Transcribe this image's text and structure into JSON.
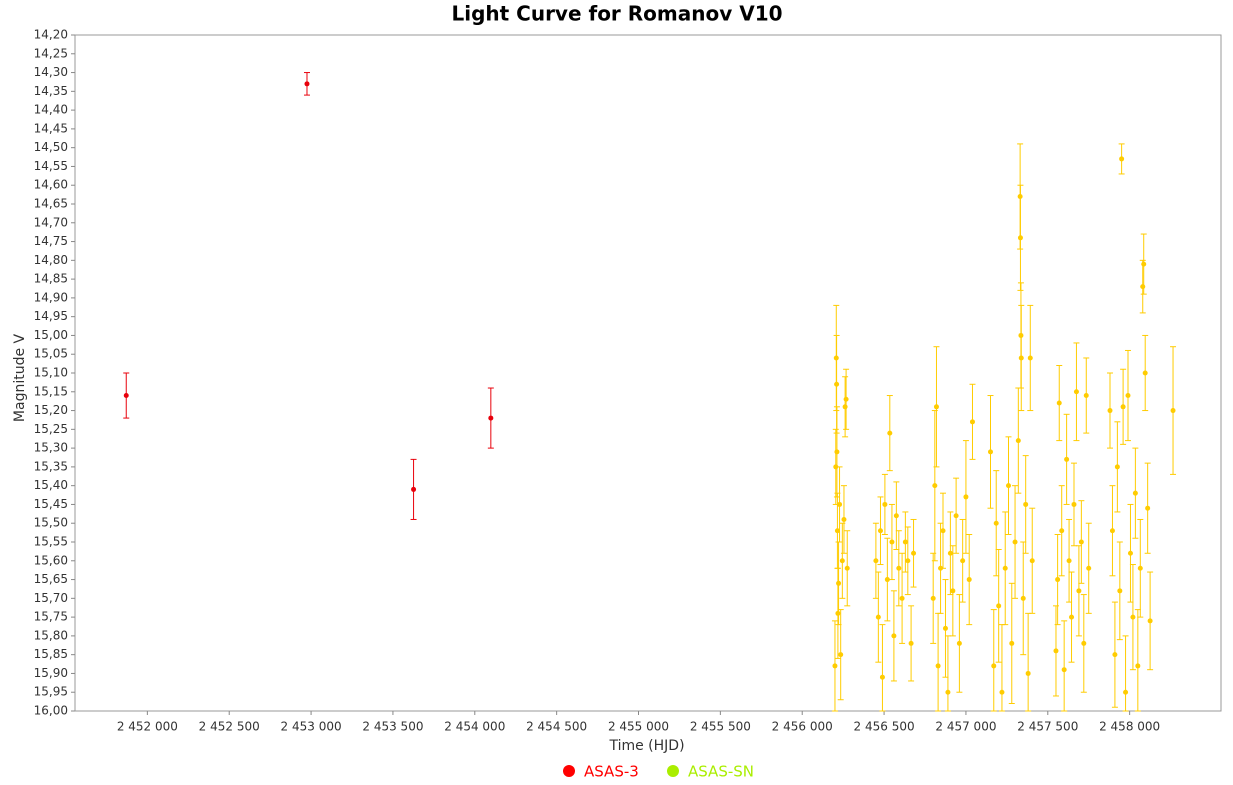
{
  "chart_data": {
    "type": "scatter",
    "title": "Light Curve for Romanov V10",
    "x_label": "Time (HJD)",
    "y_label": "Magnitude V",
    "xlim": [
      2451558,
      2458558
    ],
    "ylim": [
      16.0,
      14.2
    ],
    "xticks": [
      {
        "value": 2452000,
        "label": "2 452 000"
      },
      {
        "value": 2452500,
        "label": "2 452 500"
      },
      {
        "value": 2453000,
        "label": "2 453 000"
      },
      {
        "value": 2453500,
        "label": "2 453 500"
      },
      {
        "value": 2454000,
        "label": "2 454 000"
      },
      {
        "value": 2454500,
        "label": "2 454 500"
      },
      {
        "value": 2455000,
        "label": "2 455 000"
      },
      {
        "value": 2455500,
        "label": "2 455 500"
      },
      {
        "value": 2456000,
        "label": "2 456 000"
      },
      {
        "value": 2456500,
        "label": "2 456 500"
      },
      {
        "value": 2457000,
        "label": "2 457 000"
      },
      {
        "value": 2457500,
        "label": "2 457 500"
      },
      {
        "value": 2458000,
        "label": "2 458 000"
      }
    ],
    "yticks": [
      {
        "value": 14.2,
        "label": "14,20"
      },
      {
        "value": 14.25,
        "label": "14,25"
      },
      {
        "value": 14.3,
        "label": "14,30"
      },
      {
        "value": 14.35,
        "label": "14,35"
      },
      {
        "value": 14.4,
        "label": "14,40"
      },
      {
        "value": 14.45,
        "label": "14,45"
      },
      {
        "value": 14.5,
        "label": "14,50"
      },
      {
        "value": 14.55,
        "label": "14,55"
      },
      {
        "value": 14.6,
        "label": "14,60"
      },
      {
        "value": 14.65,
        "label": "14,65"
      },
      {
        "value": 14.7,
        "label": "14,70"
      },
      {
        "value": 14.75,
        "label": "14,75"
      },
      {
        "value": 14.8,
        "label": "14,80"
      },
      {
        "value": 14.85,
        "label": "14,85"
      },
      {
        "value": 14.9,
        "label": "14,90"
      },
      {
        "value": 14.95,
        "label": "14,95"
      },
      {
        "value": 15.0,
        "label": "15,00"
      },
      {
        "value": 15.05,
        "label": "15,05"
      },
      {
        "value": 15.1,
        "label": "15,10"
      },
      {
        "value": 15.15,
        "label": "15,15"
      },
      {
        "value": 15.2,
        "label": "15,20"
      },
      {
        "value": 15.25,
        "label": "15,25"
      },
      {
        "value": 15.3,
        "label": "15,30"
      },
      {
        "value": 15.35,
        "label": "15,35"
      },
      {
        "value": 15.4,
        "label": "15,40"
      },
      {
        "value": 15.45,
        "label": "15,45"
      },
      {
        "value": 15.5,
        "label": "15,50"
      },
      {
        "value": 15.55,
        "label": "15,55"
      },
      {
        "value": 15.6,
        "label": "15,60"
      },
      {
        "value": 15.65,
        "label": "15,65"
      },
      {
        "value": 15.7,
        "label": "15,70"
      },
      {
        "value": 15.75,
        "label": "15,75"
      },
      {
        "value": 15.8,
        "label": "15,80"
      },
      {
        "value": 15.85,
        "label": "15,85"
      },
      {
        "value": 15.9,
        "label": "15,90"
      },
      {
        "value": 15.95,
        "label": "15,95"
      },
      {
        "value": 16.0,
        "label": "16,00"
      }
    ],
    "series": [
      {
        "name": "ASAS-3",
        "color": "#e8000b",
        "legend_color": "#ff0000",
        "x": [
          2451871,
          2452975,
          2453626,
          2454098
        ],
        "values": [
          15.16,
          14.33,
          15.41,
          15.22
        ],
        "errors": [
          0.06,
          0.03,
          0.08,
          0.08
        ]
      },
      {
        "name": "ASAS-SN",
        "color": "#ffcc00",
        "legend_color": "#aaee00",
        "x": [
          2456200,
          2456205,
          2456208,
          2456210,
          2456212,
          2456215,
          2456218,
          2456222,
          2456228,
          2456235,
          2456245,
          2456255,
          2456262,
          2456268,
          2456275,
          2456450,
          2456465,
          2456478,
          2456490,
          2456505,
          2456520,
          2456535,
          2456548,
          2456560,
          2456575,
          2456590,
          2456610,
          2456630,
          2456645,
          2456665,
          2456680,
          2456800,
          2456810,
          2456820,
          2456830,
          2456845,
          2456860,
          2456875,
          2456890,
          2456905,
          2456920,
          2456940,
          2456960,
          2456980,
          2457000,
          2457020,
          2457040,
          2457150,
          2457170,
          2457185,
          2457200,
          2457220,
          2457240,
          2457260,
          2457280,
          2457300,
          2457320,
          2457331,
          2457333,
          2457336,
          2457338,
          2457350,
          2457365,
          2457380,
          2457393,
          2457405,
          2457550,
          2457560,
          2457570,
          2457585,
          2457600,
          2457615,
          2457630,
          2457645,
          2457660,
          2457675,
          2457690,
          2457705,
          2457720,
          2457735,
          2457750,
          2457880,
          2457895,
          2457910,
          2457925,
          2457940,
          2457951,
          2457960,
          2457975,
          2457990,
          2458005,
          2458020,
          2458035,
          2458050,
          2458065,
          2458080,
          2458086,
          2458095,
          2458110,
          2458125,
          2458265
        ],
        "values": [
          15.88,
          15.35,
          15.06,
          15.13,
          15.31,
          15.52,
          15.74,
          15.66,
          15.45,
          15.85,
          15.6,
          15.49,
          15.19,
          15.17,
          15.62,
          15.6,
          15.75,
          15.52,
          15.91,
          15.45,
          15.65,
          15.26,
          15.55,
          15.8,
          15.48,
          15.62,
          15.7,
          15.55,
          15.6,
          15.82,
          15.58,
          15.7,
          15.4,
          15.19,
          15.88,
          15.62,
          15.52,
          15.78,
          15.95,
          15.58,
          15.68,
          15.48,
          15.82,
          15.6,
          15.43,
          15.65,
          15.23,
          15.31,
          15.88,
          15.5,
          15.72,
          15.95,
          15.62,
          15.4,
          15.82,
          15.55,
          15.28,
          14.63,
          14.74,
          15.0,
          15.06,
          15.7,
          15.45,
          15.9,
          15.06,
          15.6,
          15.84,
          15.65,
          15.18,
          15.52,
          15.89,
          15.33,
          15.6,
          15.75,
          15.45,
          15.15,
          15.68,
          15.55,
          15.82,
          15.16,
          15.62,
          15.2,
          15.52,
          15.85,
          15.35,
          15.68,
          14.53,
          15.19,
          15.95,
          15.16,
          15.58,
          15.75,
          15.42,
          15.88,
          15.62,
          14.87,
          14.81,
          15.1,
          15.46,
          15.76,
          15.2
        ],
        "errors": [
          0.12,
          0.1,
          0.14,
          0.13,
          0.12,
          0.1,
          0.12,
          0.11,
          0.1,
          0.12,
          0.1,
          0.09,
          0.08,
          0.08,
          0.1,
          0.1,
          0.12,
          0.09,
          0.14,
          0.08,
          0.11,
          0.1,
          0.1,
          0.12,
          0.09,
          0.1,
          0.12,
          0.08,
          0.09,
          0.1,
          0.09,
          0.12,
          0.2,
          0.16,
          0.14,
          0.12,
          0.1,
          0.13,
          0.15,
          0.11,
          0.12,
          0.1,
          0.13,
          0.11,
          0.15,
          0.12,
          0.1,
          0.15,
          0.15,
          0.14,
          0.15,
          0.18,
          0.15,
          0.13,
          0.16,
          0.15,
          0.14,
          0.14,
          0.14,
          0.14,
          0.14,
          0.15,
          0.13,
          0.16,
          0.14,
          0.14,
          0.12,
          0.12,
          0.1,
          0.12,
          0.13,
          0.12,
          0.11,
          0.12,
          0.11,
          0.13,
          0.12,
          0.11,
          0.13,
          0.1,
          0.12,
          0.1,
          0.12,
          0.14,
          0.12,
          0.13,
          0.04,
          0.1,
          0.15,
          0.12,
          0.13,
          0.14,
          0.12,
          0.15,
          0.13,
          0.07,
          0.08,
          0.1,
          0.12,
          0.13,
          0.17
        ]
      }
    ]
  }
}
